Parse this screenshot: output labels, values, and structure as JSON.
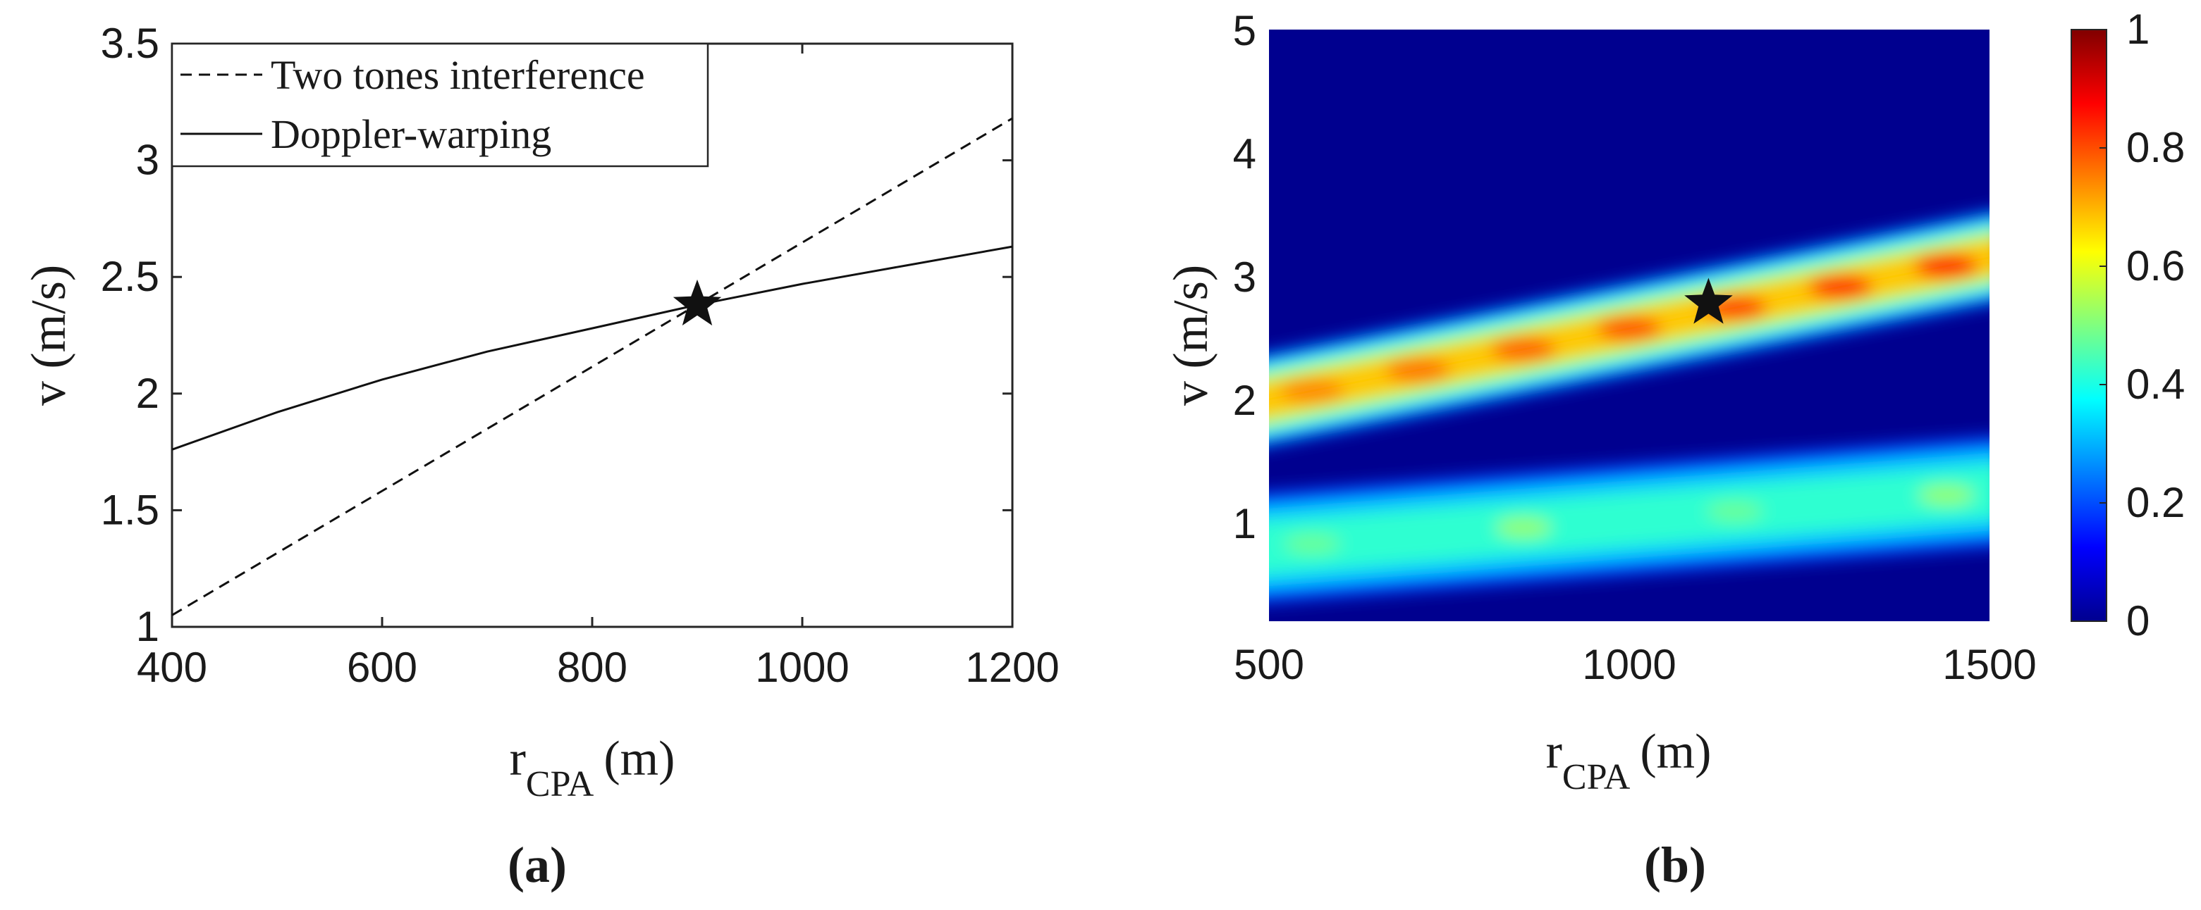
{
  "chart_data": [
    {
      "panel": "(a)",
      "type": "line",
      "xlabel": "r",
      "xlabel_sub": "CPA",
      "xlabel_unit": "(m)",
      "ylabel": "v (m/s)",
      "xlim": [
        400,
        1200
      ],
      "ylim": [
        1,
        3.5
      ],
      "xticks": [
        "400",
        "600",
        "800",
        "1000",
        "1200"
      ],
      "yticks": [
        "1",
        "1.5",
        "2",
        "2.5",
        "3",
        "3.5"
      ],
      "legend_position": "top-left",
      "series": [
        {
          "name": "Two tones interference",
          "style": "dashed",
          "x": [
            400,
            1200
          ],
          "y": [
            1.05,
            3.18
          ]
        },
        {
          "name": "Doppler-warping",
          "style": "solid",
          "x": [
            400,
            500,
            600,
            700,
            800,
            900,
            1000,
            1100,
            1200
          ],
          "y": [
            1.76,
            1.92,
            2.06,
            2.18,
            2.28,
            2.38,
            2.47,
            2.55,
            2.63
          ]
        }
      ],
      "marker": {
        "shape": "star",
        "x": 900,
        "y": 2.38
      }
    },
    {
      "panel": "(b)",
      "type": "heatmap",
      "xlabel": "r",
      "xlabel_sub": "CPA",
      "xlabel_unit": "(m)",
      "ylabel": "v (m/s)",
      "xlim": [
        500,
        1500
      ],
      "ylim": [
        0.2,
        5
      ],
      "xticks": [
        "500",
        "1000",
        "1500"
      ],
      "yticks": [
        "1",
        "2",
        "3",
        "4",
        "5"
      ],
      "colormap": "jet",
      "colorbar": {
        "range": [
          0,
          1
        ],
        "ticks": [
          "0",
          "0.2",
          "0.4",
          "0.6",
          "0.8",
          "1"
        ]
      },
      "ridges": [
        {
          "name": "upper ridge",
          "x_start": 500,
          "v_start": 2.0,
          "x_end": 1500,
          "v_end": 3.15,
          "peak": 0.85
        },
        {
          "name": "lower ridge",
          "x_start": 500,
          "v_start": 0.8,
          "x_end": 1500,
          "v_end": 1.25,
          "peak": 0.5
        }
      ],
      "marker": {
        "shape": "star",
        "x": 1110,
        "y": 2.78
      }
    }
  ]
}
